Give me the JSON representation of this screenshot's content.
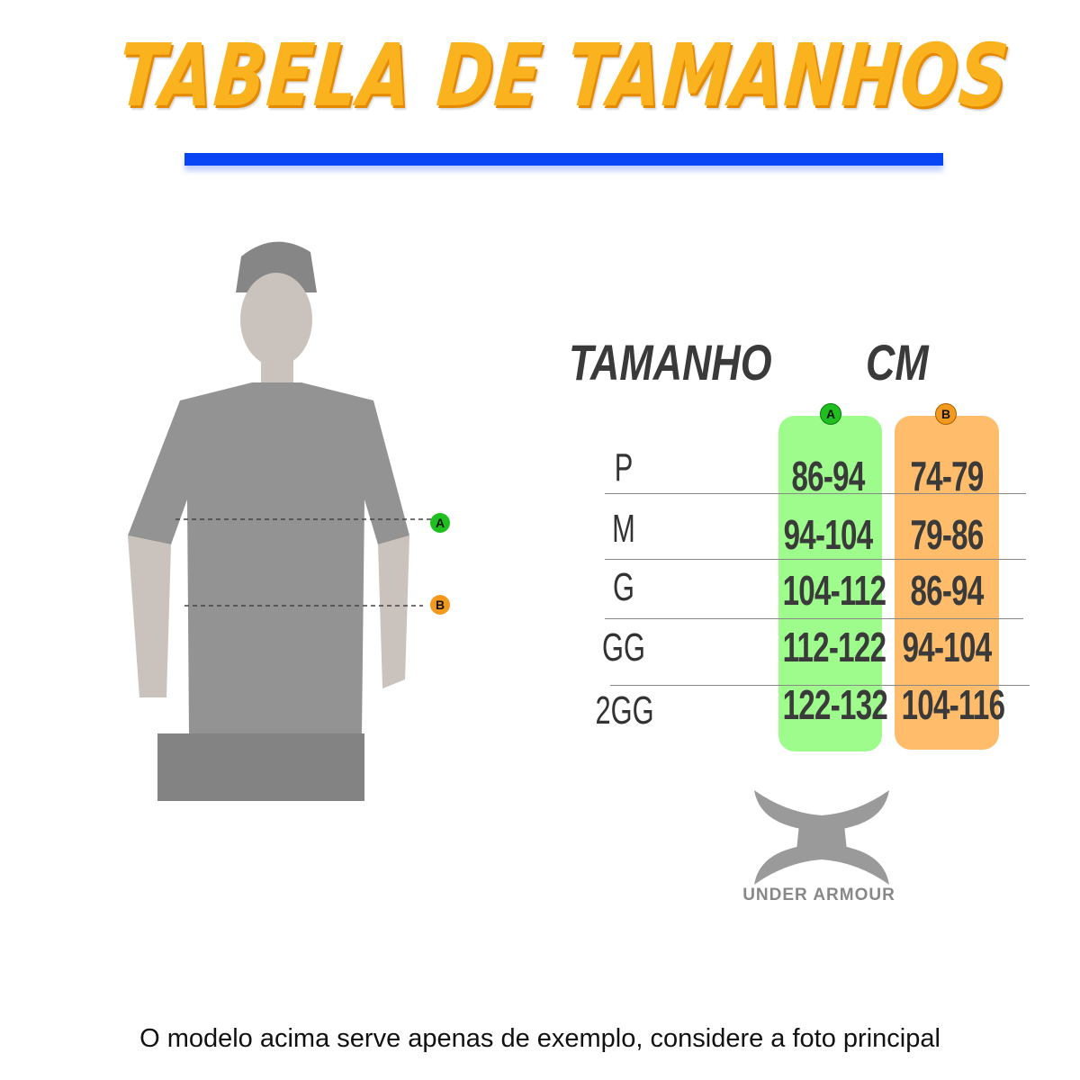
{
  "title": "TABELA DE TAMANHOS",
  "table": {
    "header_size": "TAMANHO",
    "header_unit": "CM",
    "column_a_label": "A",
    "column_b_label": "B",
    "rows": [
      {
        "size": "P",
        "a": "86-94",
        "b": "74-79"
      },
      {
        "size": "M",
        "a": "94-104",
        "b": "79-86"
      },
      {
        "size": "G",
        "a": "104-112",
        "b": "86-94"
      },
      {
        "size": "GG",
        "a": "112-122",
        "b": "94-104"
      },
      {
        "size": "2GG",
        "a": "122-132",
        "b": "104-116"
      }
    ]
  },
  "model": {
    "marker_a": "A",
    "marker_b": "B"
  },
  "brand": {
    "name": "UNDER ARMOUR",
    "icon": "under-armour-logo"
  },
  "footer": "O modelo acima serve apenas de exemplo, considere a foto principal",
  "colors": {
    "title": "#fbb21f",
    "underline": "#0a45f5",
    "column_a": "#9dfc8c",
    "column_b": "#ffbd6b",
    "badge_a": "#1fbf1f",
    "badge_b": "#f39a1e"
  }
}
